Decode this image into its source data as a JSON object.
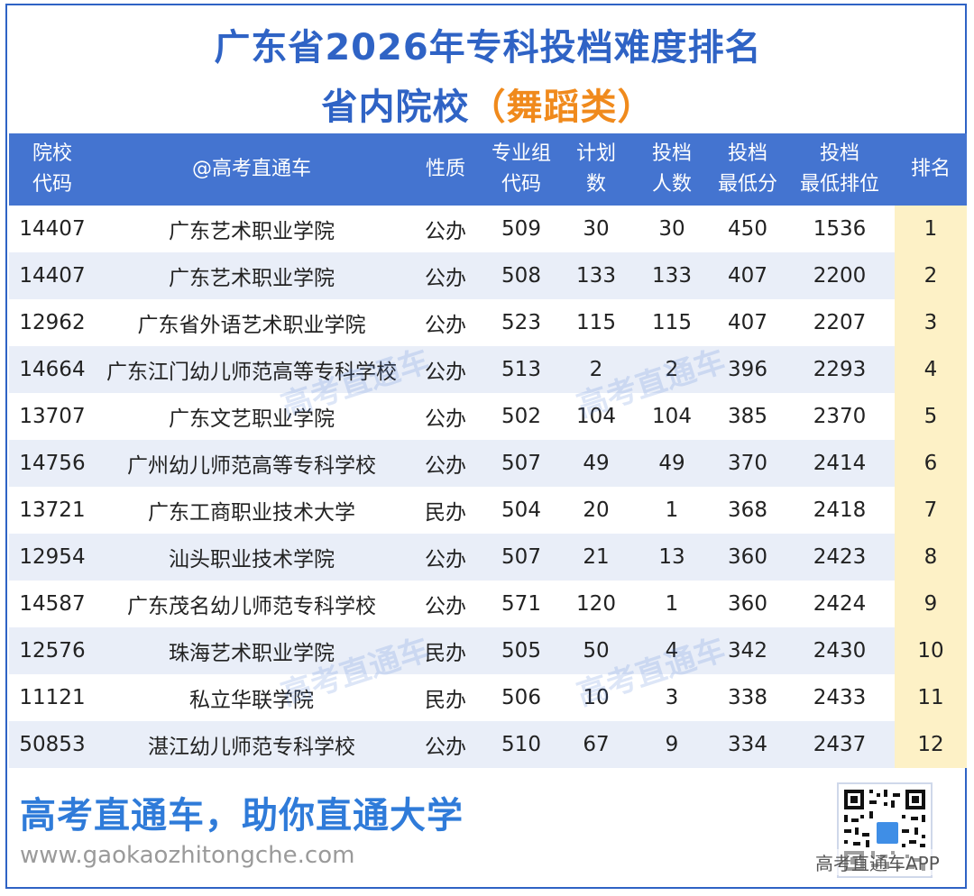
{
  "title": {
    "line1": "广东省2026年专科投档难度排名",
    "line2": "省内院校",
    "line2_paren": "（舞蹈类）"
  },
  "table": {
    "headers": [
      {
        "l1": "院校",
        "l2": "代码"
      },
      {
        "l1": "@高考直通车",
        "l2": ""
      },
      {
        "l1": "性质",
        "l2": ""
      },
      {
        "l1": "专业组",
        "l2": "代码"
      },
      {
        "l1": "计划",
        "l2": "数"
      },
      {
        "l1": "投档",
        "l2": "人数"
      },
      {
        "l1": "投档",
        "l2": "最低分"
      },
      {
        "l1": "投档",
        "l2": "最低排位"
      },
      {
        "l1": "排名",
        "l2": ""
      }
    ],
    "rows": [
      [
        "14407",
        "广东艺术职业学院",
        "公办",
        "509",
        "30",
        "30",
        "450",
        "1536",
        "1"
      ],
      [
        "14407",
        "广东艺术职业学院",
        "公办",
        "508",
        "133",
        "133",
        "407",
        "2200",
        "2"
      ],
      [
        "12962",
        "广东省外语艺术职业学院",
        "公办",
        "523",
        "115",
        "115",
        "407",
        "2207",
        "3"
      ],
      [
        "14664",
        "广东江门幼儿师范高等专科学校",
        "公办",
        "513",
        "2",
        "2",
        "396",
        "2293",
        "4"
      ],
      [
        "13707",
        "广东文艺职业学院",
        "公办",
        "502",
        "104",
        "104",
        "385",
        "2370",
        "5"
      ],
      [
        "14756",
        "广州幼儿师范高等专科学校",
        "公办",
        "507",
        "49",
        "49",
        "370",
        "2414",
        "6"
      ],
      [
        "13721",
        "广东工商职业技术大学",
        "民办",
        "504",
        "20",
        "1",
        "368",
        "2418",
        "7"
      ],
      [
        "12954",
        "汕头职业技术学院",
        "公办",
        "507",
        "21",
        "13",
        "360",
        "2423",
        "8"
      ],
      [
        "14587",
        "广东茂名幼儿师范专科学校",
        "公办",
        "571",
        "120",
        "1",
        "360",
        "2424",
        "9"
      ],
      [
        "12576",
        "珠海艺术职业学院",
        "民办",
        "505",
        "50",
        "4",
        "342",
        "2430",
        "10"
      ],
      [
        "11121",
        "私立华联学院",
        "民办",
        "506",
        "10",
        "3",
        "338",
        "2433",
        "11"
      ],
      [
        "50853",
        "湛江幼儿师范专科学校",
        "公办",
        "510",
        "67",
        "9",
        "334",
        "2437",
        "12"
      ]
    ]
  },
  "watermark": "高考直通车",
  "footer": {
    "slogan": "高考直通车，助你直通大学",
    "url": "www.gaokaozhitongche.com",
    "qr_label": "高考直通车APP"
  },
  "colors": {
    "title_blue": "#2f63c5",
    "header_bg": "#4474d0",
    "accent_orange": "#f08a1c",
    "row_alt": "#e9eef8",
    "rank_bg": "#fdf1c6",
    "slogan_blue": "#2f7bd9"
  }
}
